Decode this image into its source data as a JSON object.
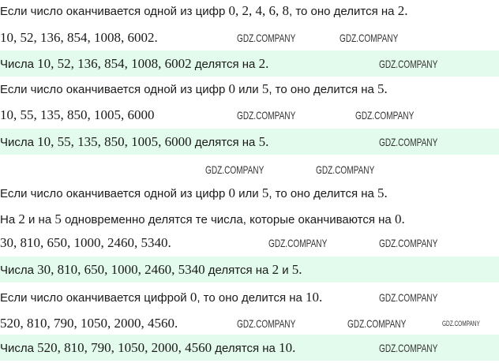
{
  "highlight_color": "#e3fbec",
  "lines": [
    {
      "segments": [
        {
          "t": "Если число оканчивается одной из цифр "
        },
        {
          "t": "0, 2, 4, 6, 8",
          "m": true
        },
        {
          "t": ", то оно делится на "
        },
        {
          "t": "2.",
          "m": true
        }
      ]
    },
    {
      "segments": [
        {
          "t": "10, 52, 136, 854, 1008, 6002.",
          "m": true
        }
      ]
    },
    {
      "segments": [
        {
          "t": "Числа "
        },
        {
          "t": "10, 52, 136, 854, 1008, 6002",
          "m": true
        },
        {
          "t": " делятся на "
        },
        {
          "t": "2.",
          "m": true
        }
      ],
      "highlight": true
    },
    {
      "segments": [
        {
          "t": "Если число оканчивается одной из цифр "
        },
        {
          "t": "0",
          "m": true
        },
        {
          "t": " или "
        },
        {
          "t": "5",
          "m": true
        },
        {
          "t": ", то оно делится на "
        },
        {
          "t": "5.",
          "m": true
        }
      ]
    },
    {
      "segments": [
        {
          "t": "10, 55, 135, 850, 1005, 6000",
          "m": true
        }
      ]
    },
    {
      "segments": [
        {
          "t": "Числа "
        },
        {
          "t": "10, 55, 135, 850, 1005, 6000",
          "m": true
        },
        {
          "t": " делятся на "
        },
        {
          "t": "5.",
          "m": true
        }
      ],
      "highlight": true
    },
    {
      "segments": [
        {
          "t": "Если число оканчивается одной из цифр "
        },
        {
          "t": "0",
          "m": true
        },
        {
          "t": " или "
        },
        {
          "t": "5",
          "m": true
        },
        {
          "t": ", то оно делится на "
        },
        {
          "t": "5.",
          "m": true
        }
      ]
    },
    {
      "segments": [
        {
          "t": "На "
        },
        {
          "t": "2",
          "m": true
        },
        {
          "t": " и на "
        },
        {
          "t": "5",
          "m": true
        },
        {
          "t": " одновременно делятся те числа, которые оканчиваются на "
        },
        {
          "t": "0.",
          "m": true
        }
      ]
    },
    {
      "segments": [
        {
          "t": "30, 810, 650, 1000, 2460, 5340.",
          "m": true
        }
      ]
    },
    {
      "segments": [
        {
          "t": "Числа "
        },
        {
          "t": "30, 810, 650, 1000, 2460, 5340",
          "m": true
        },
        {
          "t": " делятся на "
        },
        {
          "t": "2",
          "m": true
        },
        {
          "t": " и "
        },
        {
          "t": "5.",
          "m": true
        }
      ],
      "highlight": true
    },
    {
      "segments": [
        {
          "t": "Если число оканчивается цифрой "
        },
        {
          "t": "0",
          "m": true
        },
        {
          "t": ", то оно делится на "
        },
        {
          "t": "10.",
          "m": true
        }
      ]
    },
    {
      "segments": [
        {
          "t": "520, 810, 790, 1050, 2000, 4560.",
          "m": true
        }
      ]
    },
    {
      "segments": [
        {
          "t": "Числа "
        },
        {
          "t": "520, 810, 790, 1050, 2000, 4560",
          "m": true
        },
        {
          "t": " делятся на "
        },
        {
          "t": "10.",
          "m": true
        }
      ],
      "highlight": true
    }
  ],
  "watermark": "GDZ.COMPANY"
}
